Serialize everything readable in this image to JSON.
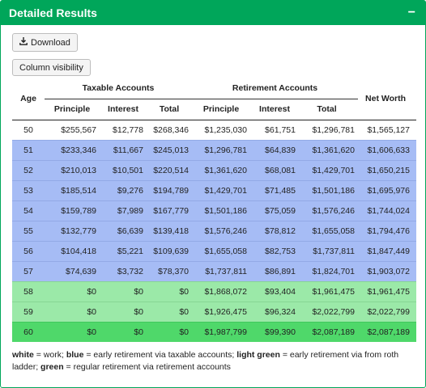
{
  "panel": {
    "title": "Detailed Results",
    "collapse_symbol": "−"
  },
  "toolbar": {
    "download_label": "Download",
    "column_visibility_label": "Column visibility"
  },
  "table": {
    "age_header": "Age",
    "taxable_group": "Taxable Accounts",
    "retirement_group": "Retirement Accounts",
    "net_worth_header": "Net Worth",
    "sub_headers": [
      "Principle",
      "Interest",
      "Total",
      "Principle",
      "Interest",
      "Total"
    ],
    "rows": [
      {
        "type": "white",
        "cells": [
          "50",
          "$255,567",
          "$12,778",
          "$268,346",
          "$1,235,030",
          "$61,751",
          "$1,296,781",
          "$1,565,127"
        ]
      },
      {
        "type": "blue",
        "cells": [
          "51",
          "$233,346",
          "$11,667",
          "$245,013",
          "$1,296,781",
          "$64,839",
          "$1,361,620",
          "$1,606,633"
        ]
      },
      {
        "type": "blue",
        "cells": [
          "52",
          "$210,013",
          "$10,501",
          "$220,514",
          "$1,361,620",
          "$68,081",
          "$1,429,701",
          "$1,650,215"
        ]
      },
      {
        "type": "blue",
        "cells": [
          "53",
          "$185,514",
          "$9,276",
          "$194,789",
          "$1,429,701",
          "$71,485",
          "$1,501,186",
          "$1,695,976"
        ]
      },
      {
        "type": "blue",
        "cells": [
          "54",
          "$159,789",
          "$7,989",
          "$167,779",
          "$1,501,186",
          "$75,059",
          "$1,576,246",
          "$1,744,024"
        ]
      },
      {
        "type": "blue",
        "cells": [
          "55",
          "$132,779",
          "$6,639",
          "$139,418",
          "$1,576,246",
          "$78,812",
          "$1,655,058",
          "$1,794,476"
        ]
      },
      {
        "type": "blue",
        "cells": [
          "56",
          "$104,418",
          "$5,221",
          "$109,639",
          "$1,655,058",
          "$82,753",
          "$1,737,811",
          "$1,847,449"
        ]
      },
      {
        "type": "blue",
        "cells": [
          "57",
          "$74,639",
          "$3,732",
          "$78,370",
          "$1,737,811",
          "$86,891",
          "$1,824,701",
          "$1,903,072"
        ]
      },
      {
        "type": "lightgreen",
        "cells": [
          "58",
          "$0",
          "$0",
          "$0",
          "$1,868,072",
          "$93,404",
          "$1,961,475",
          "$1,961,475"
        ]
      },
      {
        "type": "lightgreen",
        "cells": [
          "59",
          "$0",
          "$0",
          "$0",
          "$1,926,475",
          "$96,324",
          "$2,022,799",
          "$2,022,799"
        ]
      },
      {
        "type": "green",
        "cells": [
          "60",
          "$0",
          "$0",
          "$0",
          "$1,987,799",
          "$99,390",
          "$2,087,189",
          "$2,087,189"
        ]
      }
    ]
  },
  "legend": {
    "white_key": "white",
    "white_text": " = work; ",
    "blue_key": "blue",
    "blue_text": " = early retirement via taxable accounts; ",
    "lightgreen_key": "light green",
    "lightgreen_text": " = early retirement via from roth ladder; ",
    "green_key": "green",
    "green_text": " = regular retirement via retirement accounts"
  },
  "colors": {
    "accent": "#00a65a",
    "row_white": "#ffffff",
    "row_blue": "#a6bcf5",
    "row_lightgreen": "#9be9a8",
    "row_green": "#4fd86a"
  },
  "icons": {
    "download": "download-icon",
    "collapse": "minus-icon"
  }
}
